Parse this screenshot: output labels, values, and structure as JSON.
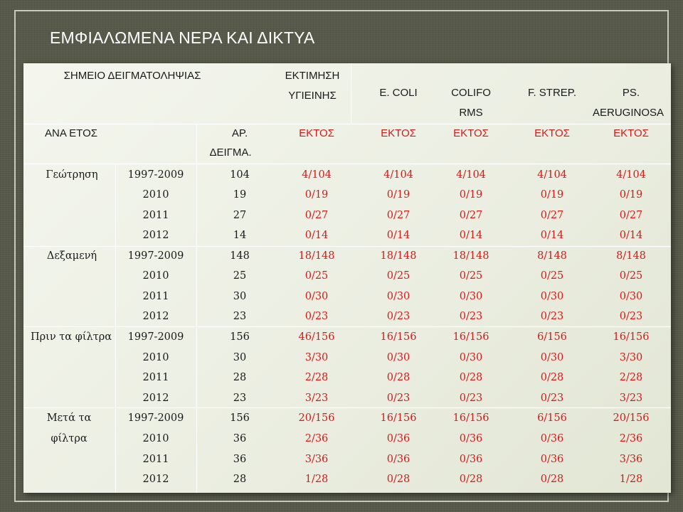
{
  "title": "ΕΜΦΙΑΛΩΜΕΝΑ ΝΕΡΑ ΚΑΙ ΔΙΚΤΥΑ",
  "colors": {
    "value_red": "#d21b1b",
    "panel_bg": "#eef0e6",
    "slide_bg": "#56594a"
  },
  "header": {
    "sampling_point": "ΣΗΜΕΙΟ ΔΕΙΓΜΑΤΟΛΗΨΙΑΣ",
    "hygiene_line1": "ΕΚΤΙΜΗΣΗ",
    "hygiene_line2": "ΥΓΙΕΙΝΗΣ",
    "ecoli": "E. COLI",
    "colif_line1": "COLIFO",
    "colif_line2": "RMS",
    "fstrep": "F. STREP.",
    "ps_line1": "PS.",
    "ps_line2": "AERUGINOSA",
    "per_year": "ΑΝΑ ΕΤΟΣ",
    "num_line1": "ΑΡ.",
    "num_line2": "ΔΕΙΓΜΑ.",
    "out_labels": [
      "ΕΚΤΟΣ",
      "ΕΚΤΟΣ",
      "ΕΚΤΟΣ",
      "ΕΚΤΟΣ",
      "ΕΚΤΟΣ"
    ]
  },
  "groups": [
    {
      "label": [
        "Γεώτρηση"
      ],
      "rows": [
        {
          "period": "1997-2009",
          "n": "104",
          "values": [
            "4/104",
            "4/104",
            "4/104",
            "4/104",
            "4/104"
          ]
        },
        {
          "period": "2010",
          "n": "19",
          "values": [
            "0/19",
            "0/19",
            "0/19",
            "0/19",
            "0/19"
          ]
        },
        {
          "period": "2011",
          "n": "27",
          "values": [
            "0/27",
            "0/27",
            "0/27",
            "0/27",
            "0/27"
          ]
        },
        {
          "period": "2012",
          "n": "14",
          "values": [
            "0/14",
            "0/14",
            "0/14",
            "0/14",
            "0/14"
          ]
        }
      ]
    },
    {
      "label": [
        "Δεξαμενή"
      ],
      "rows": [
        {
          "period": "1997-2009",
          "n": "148",
          "values": [
            "18/148",
            "18/148",
            "18/148",
            "8/148",
            "8/148"
          ]
        },
        {
          "period": "2010",
          "n": "25",
          "values": [
            "0/25",
            "0/25",
            "0/25",
            "0/25",
            "0/25"
          ]
        },
        {
          "period": "2011",
          "n": "30",
          "values": [
            "0/30",
            "0/30",
            "0/30",
            "0/30",
            "0/30"
          ]
        },
        {
          "period": "2012",
          "n": "23",
          "values": [
            "0/23",
            "0/23",
            "0/23",
            "0/23",
            "0/23"
          ]
        }
      ]
    },
    {
      "label": [
        "Πριν τα φίλτρα"
      ],
      "rows": [
        {
          "period": "1997-2009",
          "n": "156",
          "values": [
            "46/156",
            "16/156",
            "16/156",
            "6/156",
            "16/156"
          ]
        },
        {
          "period": "2010",
          "n": "30",
          "values": [
            "3/30",
            "0/30",
            "0/30",
            "0/30",
            "3/30"
          ]
        },
        {
          "period": "2011",
          "n": "28",
          "values": [
            "2/28",
            "0/28",
            "0/28",
            "0/28",
            "2/28"
          ]
        },
        {
          "period": "2012",
          "n": "23",
          "values": [
            "3/23",
            "0/23",
            "0/23",
            "0/23",
            "3/23"
          ]
        }
      ]
    },
    {
      "label": [
        "Μετά τα",
        "φίλτρα"
      ],
      "rows": [
        {
          "period": "1997-2009",
          "n": "156",
          "values": [
            "20/156",
            "16/156",
            "16/156",
            "6/156",
            "20/156"
          ]
        },
        {
          "period": "2010",
          "n": "36",
          "values": [
            "2/36",
            "0/36",
            "0/36",
            "0/36",
            "2/36"
          ]
        },
        {
          "period": "2011",
          "n": "36",
          "values": [
            "3/36",
            "0/36",
            "0/36",
            "0/36",
            "3/36"
          ]
        },
        {
          "period": "2012",
          "n": "28",
          "values": [
            "1/28",
            "0/28",
            "0/28",
            "0/28",
            "1/28"
          ]
        }
      ]
    }
  ]
}
